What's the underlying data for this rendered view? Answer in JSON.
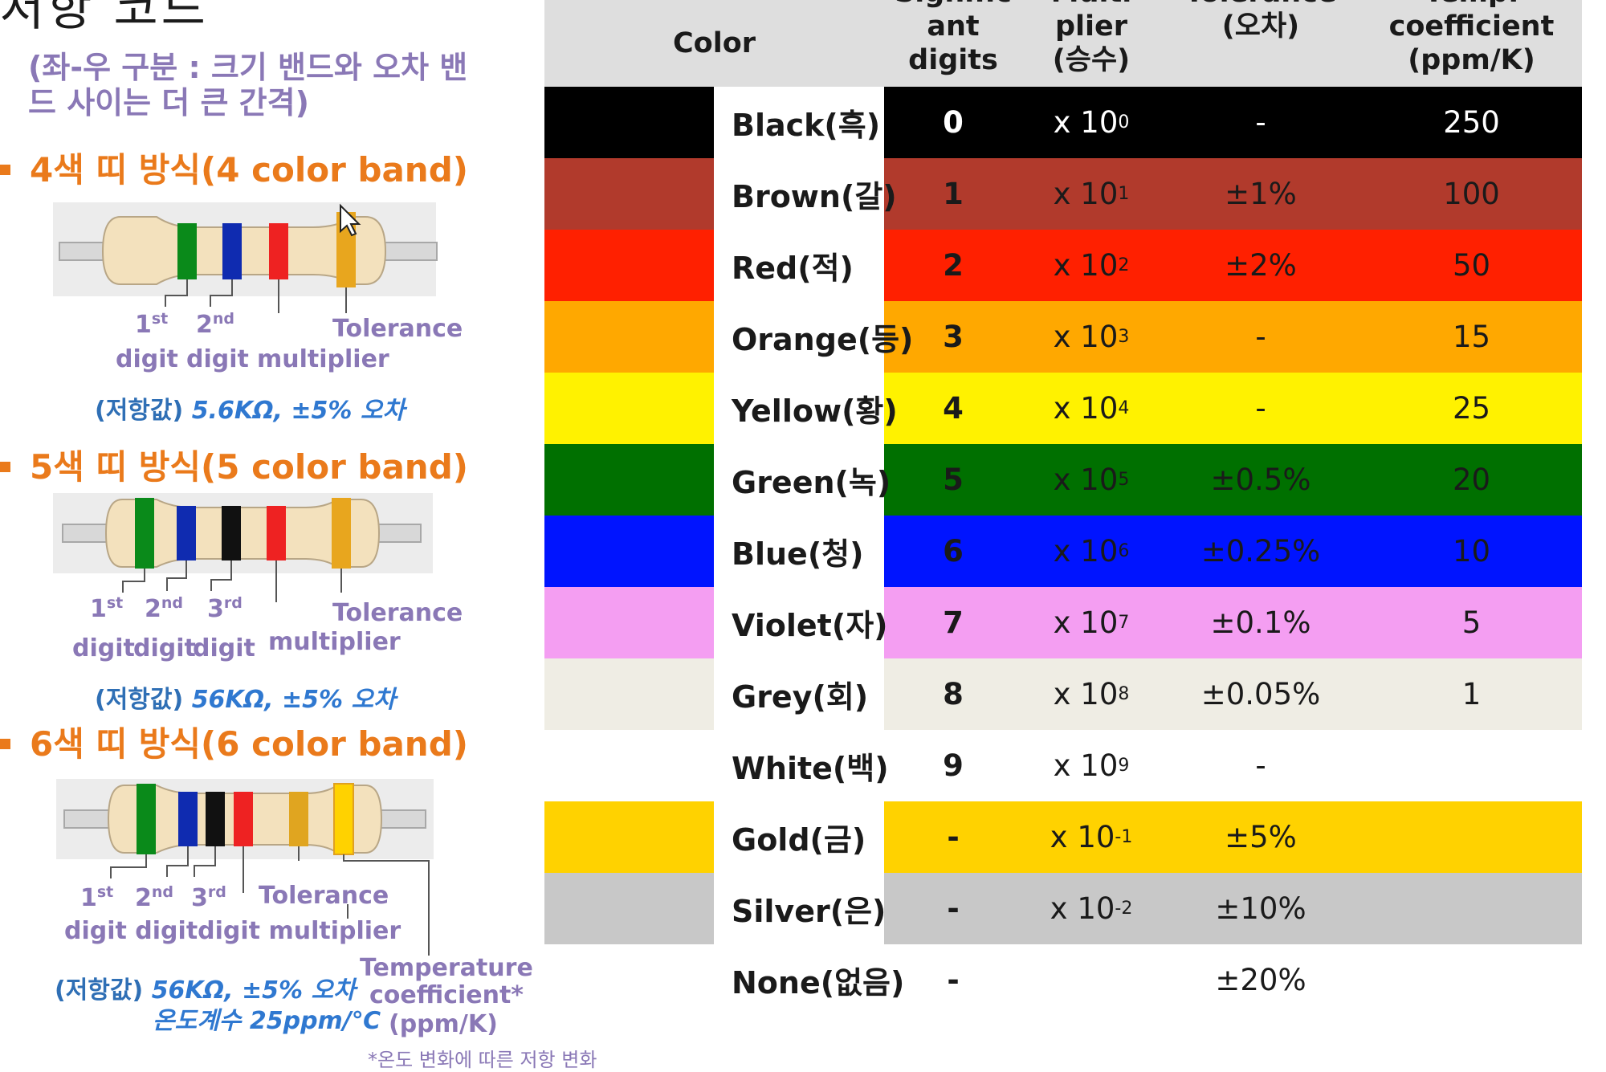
{
  "page": {
    "title_fragment": "저항 코드",
    "note": "(좌-우 구분 : 크기 밴드와 오차 밴드 사이는 더 큰 간격)",
    "footnote": "*온도 변화에 따른 저항 변화"
  },
  "sections": [
    {
      "heading": "4색 띠 방식(4 color band)",
      "labels": {
        "d1": "1",
        "d1_sup": "st",
        "d2": "2",
        "d2_sup": "nd",
        "digit_word": "digit",
        "multiplier": "multiplier",
        "tolerance": "Tolerance"
      },
      "value_prefix": "(저항값)",
      "value": "5.6KΩ, ±5% 오차"
    },
    {
      "heading": "5색 띠 방식(5 color band)",
      "labels": {
        "d1": "1",
        "d1_sup": "st",
        "d2": "2",
        "d2_sup": "nd",
        "d3": "3",
        "d3_sup": "rd",
        "digit_word": "digit",
        "multiplier": "multiplier",
        "tolerance": "Tolerance"
      },
      "value_prefix": "(저항값)",
      "value": "56KΩ, ±5% 오차"
    },
    {
      "heading": "6색 띠 방식(6 color band)",
      "labels": {
        "d1": "1",
        "d1_sup": "st",
        "d2": "2",
        "d2_sup": "nd",
        "d3": "3",
        "d3_sup": "rd",
        "digit_row": "digit digitdigit multiplier",
        "tolerance": "Tolerance",
        "temp1": "Temperature",
        "temp2": "coefficient*",
        "temp3": "(ppm/K)"
      },
      "value_prefix": "(저항값)",
      "value": "56KΩ, ±5% 오차",
      "value2": "온도계수 25ppm/℃"
    }
  ],
  "table": {
    "headers": {
      "color": "Color",
      "digits_1": "Signific",
      "digits_2": "ant",
      "digits_3": "digits",
      "mult_1": "Multi",
      "mult_2": "plier",
      "mult_3": "(승수)",
      "tol_1": "Tolerance",
      "tol_2": "(오차)",
      "temp_1": "Temp.",
      "temp_2": "coefficient",
      "temp_3": "(ppm/K)"
    },
    "rows": [
      {
        "name": "Black(흑)",
        "color": "#000000",
        "text": "#ffffff",
        "digit": "0",
        "mult_base": "x 10",
        "mult_exp": "0",
        "tol": "-",
        "temp": "250"
      },
      {
        "name": "Brown(갈)",
        "color": "#b13a2c",
        "text": "#1a1a1a",
        "digit": "1",
        "mult_base": "x 10",
        "mult_exp": "1",
        "tol": "±1%",
        "temp": "100"
      },
      {
        "name": "Red(적)",
        "color": "#ff2000",
        "text": "#1a1a1a",
        "digit": "2",
        "mult_base": "x 10",
        "mult_exp": "2",
        "tol": "±2%",
        "temp": "50"
      },
      {
        "name": "Orange(등)",
        "color": "#ffa800",
        "text": "#1a1a1a",
        "digit": "3",
        "mult_base": "x 10",
        "mult_exp": "3",
        "tol": "-",
        "temp": "15"
      },
      {
        "name": "Yellow(황)",
        "color": "#fff200",
        "text": "#1a1a1a",
        "digit": "4",
        "mult_base": "x 10",
        "mult_exp": "4",
        "tol": "-",
        "temp": "25"
      },
      {
        "name": "Green(녹)",
        "color": "#007000",
        "text": "#1a1a1a",
        "digit": "5",
        "mult_base": "x 10",
        "mult_exp": "5",
        "tol": "±0.5%",
        "temp": "20"
      },
      {
        "name": "Blue(청)",
        "color": "#0014ff",
        "text": "#1a1a1a",
        "digit": "6",
        "mult_base": "x 10",
        "mult_exp": "6",
        "tol": "±0.25%",
        "temp": "10"
      },
      {
        "name": "Violet(자)",
        "color": "#f49ef2",
        "text": "#1a1a1a",
        "digit": "7",
        "mult_base": "x 10",
        "mult_exp": "7",
        "tol": "±0.1%",
        "temp": "5"
      },
      {
        "name": "Grey(회)",
        "color": "#efede4",
        "text": "#1a1a1a",
        "digit": "8",
        "mult_base": "x 10",
        "mult_exp": "8",
        "tol": "±0.05%",
        "temp": "1"
      },
      {
        "name": "White(백)",
        "color": "#ffffff",
        "text": "#1a1a1a",
        "digit": "9",
        "mult_base": "x 10",
        "mult_exp": "9",
        "tol": "-",
        "temp": ""
      },
      {
        "name": "Gold(금)",
        "color": "#ffd200",
        "text": "#1a1a1a",
        "digit": "-",
        "mult_base": "x 10",
        "mult_exp": "-1",
        "tol": "±5%",
        "temp": ""
      },
      {
        "name": "Silver(은)",
        "color": "#c8c8c8",
        "text": "#1a1a1a",
        "digit": "-",
        "mult_base": "x 10",
        "mult_exp": "-2",
        "tol": "±10%",
        "temp": ""
      },
      {
        "name": "None(없음)",
        "color": "#ffffff",
        "text": "#1a1a1a",
        "digit": "-",
        "mult_base": "",
        "mult_exp": "",
        "tol": "±20%",
        "temp": ""
      }
    ]
  }
}
